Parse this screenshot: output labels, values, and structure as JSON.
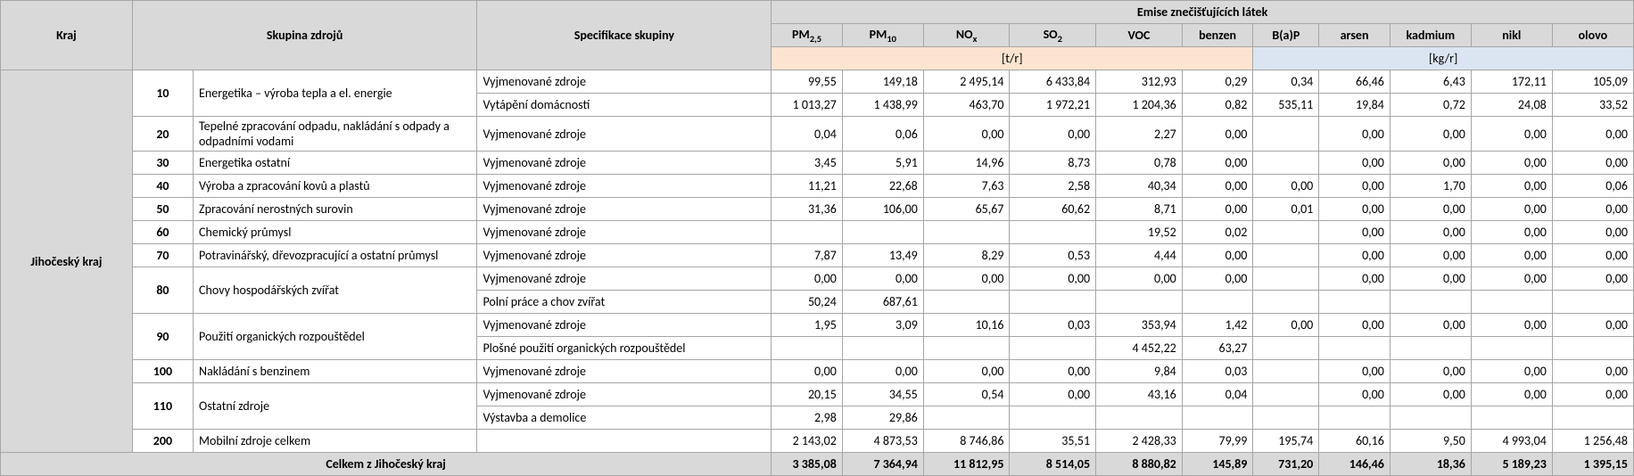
{
  "headers": {
    "kraj": "Kraj",
    "skupina": "Skupina zdrojů",
    "spec": "Specifikace skupiny",
    "emise": "Emise znečišťujících látek",
    "pm25": "PM",
    "pm25_sub": "2,5",
    "pm10": "PM",
    "pm10_sub": "10",
    "nox": "NO",
    "nox_sub": "x",
    "so2": "SO",
    "so2_sub": "2",
    "voc": "VOC",
    "benzen": "benzen",
    "bap": "B(a)P",
    "arsen": "arsen",
    "kadmium": "kadmium",
    "nikl": "nikl",
    "olovo": "olovo",
    "unit_tr": "[t/r]",
    "unit_kgr": "[kg/r]"
  },
  "region": "Jihočeský kraj",
  "groups": [
    {
      "code": "10",
      "name": "Energetika – výroba tepla a el. energie"
    },
    {
      "code": "20",
      "name": "Tepelné zpracování odpadu, nakládání s odpady a odpadními vodami"
    },
    {
      "code": "30",
      "name": "Energetika ostatní"
    },
    {
      "code": "40",
      "name": "Výroba a zpracování kovů a plastů"
    },
    {
      "code": "50",
      "name": "Zpracování nerostných surovin"
    },
    {
      "code": "60",
      "name": "Chemický průmysl"
    },
    {
      "code": "70",
      "name": "Potravinářský, dřevozpracující a ostatní průmysl"
    },
    {
      "code": "80",
      "name": "Chovy hospodářských zvířat"
    },
    {
      "code": "90",
      "name": "Použití organických rozpouštědel"
    },
    {
      "code": "100",
      "name": "Nakládání s benzinem"
    },
    {
      "code": "110",
      "name": "Ostatní zdroje"
    },
    {
      "code": "200",
      "name": "Mobilní zdroje celkem"
    }
  ],
  "specs": {
    "vyjm": "Vyjmenované zdroje",
    "vytap": "Vytápění domácností",
    "polni": "Polní práce a chov zvířat",
    "plosne": "Plošné použití organických rozpouštědel",
    "vystavba": "Výstavba a demolice",
    "empty": ""
  },
  "rows": {
    "r10a": {
      "pm25": "99,55",
      "pm10": "149,18",
      "nox": "2 495,14",
      "so2": "6 433,84",
      "voc": "312,93",
      "benzen": "0,29",
      "bap": "0,34",
      "arsen": "66,46",
      "kad": "6,43",
      "nikl": "172,11",
      "olovo": "105,09"
    },
    "r10b": {
      "pm25": "1 013,27",
      "pm10": "1 438,99",
      "nox": "463,70",
      "so2": "1 972,21",
      "voc": "1 204,36",
      "benzen": "0,82",
      "bap": "535,11",
      "arsen": "19,84",
      "kad": "0,72",
      "nikl": "24,08",
      "olovo": "33,52"
    },
    "r20": {
      "pm25": "0,04",
      "pm10": "0,06",
      "nox": "0,00",
      "so2": "0,00",
      "voc": "2,27",
      "benzen": "0,00",
      "bap": "",
      "arsen": "0,00",
      "kad": "0,00",
      "nikl": "0,00",
      "olovo": "0,00"
    },
    "r30": {
      "pm25": "3,45",
      "pm10": "5,91",
      "nox": "14,96",
      "so2": "8,73",
      "voc": "0,78",
      "benzen": "0,00",
      "bap": "",
      "arsen": "0,00",
      "kad": "0,00",
      "nikl": "0,00",
      "olovo": "0,00"
    },
    "r40": {
      "pm25": "11,21",
      "pm10": "22,68",
      "nox": "7,63",
      "so2": "2,58",
      "voc": "40,34",
      "benzen": "0,00",
      "bap": "0,00",
      "arsen": "0,00",
      "kad": "1,70",
      "nikl": "0,00",
      "olovo": "0,06"
    },
    "r50": {
      "pm25": "31,36",
      "pm10": "106,00",
      "nox": "65,67",
      "so2": "60,62",
      "voc": "8,71",
      "benzen": "0,00",
      "bap": "0,01",
      "arsen": "0,00",
      "kad": "0,00",
      "nikl": "0,00",
      "olovo": "0,00"
    },
    "r60": {
      "pm25": "",
      "pm10": "",
      "nox": "",
      "so2": "",
      "voc": "19,52",
      "benzen": "0,02",
      "bap": "",
      "arsen": "0,00",
      "kad": "0,00",
      "nikl": "0,00",
      "olovo": "0,00"
    },
    "r70": {
      "pm25": "7,87",
      "pm10": "13,49",
      "nox": "8,29",
      "so2": "0,53",
      "voc": "4,44",
      "benzen": "0,00",
      "bap": "",
      "arsen": "0,00",
      "kad": "0,00",
      "nikl": "0,00",
      "olovo": "0,00"
    },
    "r80a": {
      "pm25": "0,00",
      "pm10": "0,00",
      "nox": "0,00",
      "so2": "0,00",
      "voc": "0,00",
      "benzen": "0,00",
      "bap": "",
      "arsen": "0,00",
      "kad": "0,00",
      "nikl": "0,00",
      "olovo": "0,00"
    },
    "r80b": {
      "pm25": "50,24",
      "pm10": "687,61",
      "nox": "",
      "so2": "",
      "voc": "",
      "benzen": "",
      "bap": "",
      "arsen": "",
      "kad": "",
      "nikl": "",
      "olovo": ""
    },
    "r90a": {
      "pm25": "1,95",
      "pm10": "3,09",
      "nox": "10,16",
      "so2": "0,03",
      "voc": "353,94",
      "benzen": "1,42",
      "bap": "0,00",
      "arsen": "0,00",
      "kad": "0,00",
      "nikl": "0,00",
      "olovo": "0,00"
    },
    "r90b": {
      "pm25": "",
      "pm10": "",
      "nox": "",
      "so2": "",
      "voc": "4 452,22",
      "benzen": "63,27",
      "bap": "",
      "arsen": "",
      "kad": "",
      "nikl": "",
      "olovo": ""
    },
    "r100": {
      "pm25": "0,00",
      "pm10": "0,00",
      "nox": "0,00",
      "so2": "0,00",
      "voc": "9,84",
      "benzen": "0,03",
      "bap": "",
      "arsen": "0,00",
      "kad": "0,00",
      "nikl": "0,00",
      "olovo": "0,00"
    },
    "r110a": {
      "pm25": "20,15",
      "pm10": "34,55",
      "nox": "0,54",
      "so2": "0,00",
      "voc": "43,16",
      "benzen": "0,04",
      "bap": "",
      "arsen": "0,00",
      "kad": "0,00",
      "nikl": "0,00",
      "olovo": "0,00"
    },
    "r110b": {
      "pm25": "2,98",
      "pm10": "29,86",
      "nox": "",
      "so2": "",
      "voc": "",
      "benzen": "",
      "bap": "",
      "arsen": "",
      "kad": "",
      "nikl": "",
      "olovo": ""
    },
    "r200": {
      "pm25": "2 143,02",
      "pm10": "4 873,53",
      "nox": "8 746,86",
      "so2": "35,51",
      "voc": "2 428,33",
      "benzen": "79,99",
      "bap": "195,74",
      "arsen": "60,16",
      "kad": "9,50",
      "nikl": "4 993,04",
      "olovo": "1 256,48"
    }
  },
  "total": {
    "label": "Celkem z Jihočeský kraj",
    "pm25": "3 385,08",
    "pm10": "7 364,94",
    "nox": "11 812,95",
    "so2": "8 514,05",
    "voc": "8 880,82",
    "benzen": "145,89",
    "bap": "731,20",
    "arsen": "146,46",
    "kad": "18,36",
    "nikl": "5 189,23",
    "olovo": "1 395,15"
  },
  "styling": {
    "header_bg": "#d9d9d9",
    "border_color": "#a6a6a6",
    "unit_tr_bg": "#fde4d0",
    "unit_kgr_bg": "#dbe5f1",
    "font_family": "Calibri",
    "font_size_pt": 11
  }
}
